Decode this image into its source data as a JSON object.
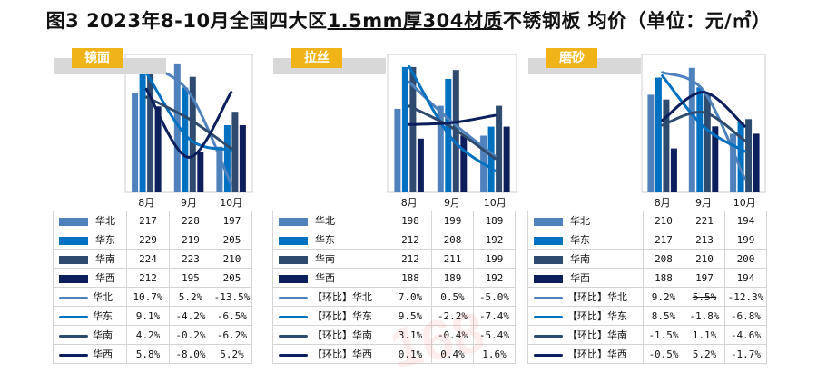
{
  "title_prefix": "图3 2023年8-10月全国四大区",
  "title_underlined": "1.5mm厚304材质",
  "title_suffix": "不锈钢板 均价（单位：元/㎡）",
  "watermark": "168",
  "colors": {
    "华北": "#4f81bd",
    "华东": "#0070c0",
    "华南": "#2e4a6e",
    "华西": "#0c1f5c"
  },
  "panels": [
    {
      "tag": "镜面",
      "months": [
        "8月",
        "9月",
        "10月"
      ],
      "rows": [
        {
          "label": "华北",
          "kind": "bar",
          "values": [
            "217",
            "228",
            "197"
          ]
        },
        {
          "label": "华东",
          "kind": "bar",
          "values": [
            "229",
            "219",
            "205"
          ]
        },
        {
          "label": "华南",
          "kind": "bar",
          "values": [
            "224",
            "223",
            "210"
          ]
        },
        {
          "label": "华西",
          "kind": "bar",
          "values": [
            "212",
            "195",
            "205"
          ]
        },
        {
          "label": "华北",
          "kind": "line",
          "values": [
            "10.7%",
            "5.2%",
            "-13.5%"
          ]
        },
        {
          "label": "华东",
          "kind": "line",
          "values": [
            "9.1%",
            "-4.2%",
            "-6.5%"
          ]
        },
        {
          "label": "华南",
          "kind": "line",
          "values": [
            "4.2%",
            "-0.2%",
            "-6.2%"
          ]
        },
        {
          "label": "华西",
          "kind": "line",
          "values": [
            "5.8%",
            "-8.0%",
            "5.2%"
          ]
        }
      ],
      "chart_data": {
        "type": "bar",
        "categories": [
          "8月",
          "9月",
          "10月"
        ],
        "series": [
          {
            "name": "华北",
            "values": [
              217,
              228,
              197
            ]
          },
          {
            "name": "华东",
            "values": [
              229,
              219,
              205
            ]
          },
          {
            "name": "华南",
            "values": [
              224,
              223,
              210
            ]
          },
          {
            "name": "华西",
            "values": [
              212,
              195,
              205
            ]
          }
        ],
        "line_series": [
          {
            "name": "华北",
            "values": [
              10.7,
              5.2,
              -13.5
            ]
          },
          {
            "name": "华东",
            "values": [
              9.1,
              -4.2,
              -6.5
            ]
          },
          {
            "name": "华南",
            "values": [
              4.2,
              -0.2,
              -6.2
            ]
          },
          {
            "name": "华西",
            "values": [
              5.8,
              -8.0,
              5.2
            ]
          }
        ],
        "bar_range": [
          180,
          230
        ],
        "line_range": [
          -14,
          11
        ]
      }
    },
    {
      "tag": "拉丝",
      "months": [
        "8月",
        "9月",
        "10月"
      ],
      "rows": [
        {
          "label": "华北",
          "kind": "bar",
          "values": [
            "198",
            "199",
            "189"
          ]
        },
        {
          "label": "华东",
          "kind": "bar",
          "values": [
            "212",
            "208",
            "192"
          ]
        },
        {
          "label": "华南",
          "kind": "bar",
          "values": [
            "212",
            "211",
            "199"
          ]
        },
        {
          "label": "华西",
          "kind": "bar",
          "values": [
            "188",
            "189",
            "192"
          ]
        },
        {
          "label": "【环比】华北",
          "kind": "line",
          "values": [
            "7.0%",
            "0.5%",
            "-5.0%"
          ]
        },
        {
          "label": "【环比】华东",
          "kind": "line",
          "values": [
            "9.5%",
            "-2.2%",
            "-7.4%"
          ]
        },
        {
          "label": "【环比】华南",
          "kind": "line",
          "values": [
            "3.1%",
            "-0.4%",
            "-5.4%"
          ]
        },
        {
          "label": "【环比】华西",
          "kind": "line",
          "values": [
            "0.1%",
            "0.4%",
            "1.6%"
          ]
        }
      ],
      "chart_data": {
        "type": "bar",
        "categories": [
          "8月",
          "9月",
          "10月"
        ],
        "series": [
          {
            "name": "华北",
            "values": [
              198,
              199,
              189
            ]
          },
          {
            "name": "华东",
            "values": [
              212,
              208,
              192
            ]
          },
          {
            "name": "华南",
            "values": [
              212,
              211,
              199
            ]
          },
          {
            "name": "华西",
            "values": [
              188,
              189,
              192
            ]
          }
        ],
        "line_series": [
          {
            "name": "【环比】华北",
            "values": [
              7.0,
              0.5,
              -5.0
            ]
          },
          {
            "name": "【环比】华东",
            "values": [
              9.5,
              -2.2,
              -7.4
            ]
          },
          {
            "name": "【环比】华南",
            "values": [
              3.1,
              -0.4,
              -5.4
            ]
          },
          {
            "name": "【环比】华西",
            "values": [
              0.1,
              0.4,
              1.6
            ]
          }
        ],
        "bar_range": [
          170,
          215
        ],
        "line_range": [
          -10,
          10
        ]
      }
    },
    {
      "tag": "磨砂",
      "months": [
        "8月",
        "9月",
        "10月"
      ],
      "rows": [
        {
          "label": "华北",
          "kind": "bar",
          "values": [
            "210",
            "221",
            "194"
          ]
        },
        {
          "label": "华东",
          "kind": "bar",
          "values": [
            "217",
            "213",
            "199"
          ]
        },
        {
          "label": "华南",
          "kind": "bar",
          "values": [
            "208",
            "210",
            "200"
          ]
        },
        {
          "label": "华西",
          "kind": "bar",
          "values": [
            "188",
            "197",
            "194"
          ]
        },
        {
          "label": "【环比】华北",
          "kind": "line",
          "values": [
            "9.2%",
            "5.5%",
            "-12.3%"
          ],
          "strike": [
            false,
            true,
            false
          ]
        },
        {
          "label": "【环比】华东",
          "kind": "line",
          "values": [
            "8.5%",
            "-1.8%",
            "-6.8%"
          ]
        },
        {
          "label": "【环比】华南",
          "kind": "line",
          "values": [
            "-1.5%",
            "1.1%",
            "-4.6%"
          ]
        },
        {
          "label": "【环比】华西",
          "kind": "line",
          "values": [
            "-0.5%",
            "5.2%",
            "-1.7%"
          ]
        }
      ],
      "chart_data": {
        "type": "bar",
        "categories": [
          "8月",
          "9月",
          "10月"
        ],
        "series": [
          {
            "name": "华北",
            "values": [
              210,
              221,
              194
            ]
          },
          {
            "name": "华东",
            "values": [
              217,
              213,
              199
            ]
          },
          {
            "name": "华南",
            "values": [
              208,
              210,
              200
            ]
          },
          {
            "name": "华西",
            "values": [
              188,
              197,
              194
            ]
          }
        ],
        "line_series": [
          {
            "name": "【环比】华北",
            "values": [
              9.2,
              5.5,
              -12.3
            ]
          },
          {
            "name": "【环比】华东",
            "values": [
              8.5,
              -1.8,
              -6.8
            ]
          },
          {
            "name": "【环比】华南",
            "values": [
              -1.5,
              1.1,
              -4.6
            ]
          },
          {
            "name": "【环比】华西",
            "values": [
              -0.5,
              5.2,
              -1.7
            ]
          }
        ],
        "bar_range": [
          170,
          225
        ],
        "line_range": [
          -14,
          11
        ]
      }
    }
  ]
}
